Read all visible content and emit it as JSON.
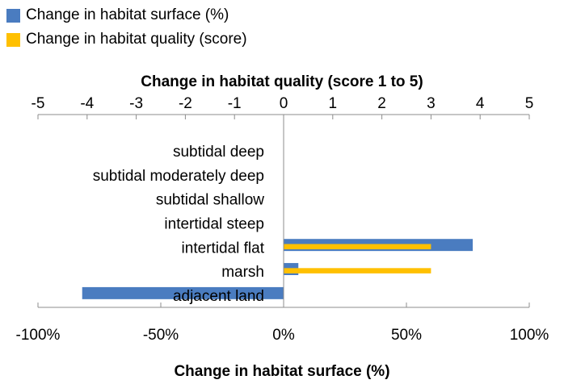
{
  "chart_data": {
    "type": "bar",
    "orientation": "horizontal",
    "categories": [
      "subtidal deep",
      "subtidal moderately deep",
      "subtidal shallow",
      "intertidal steep",
      "intertidal flat",
      "marsh",
      "adjacent land"
    ],
    "series": [
      {
        "name": "Change in habitat surface (%)",
        "axis": "bottom",
        "color": "#4a7cc0",
        "values": [
          0,
          0,
          0,
          0,
          77,
          6,
          -82
        ]
      },
      {
        "name": "Change in habitat quality (score)",
        "axis": "top",
        "color": "#ffc000",
        "values": [
          0,
          0,
          0,
          0,
          3,
          3,
          0
        ]
      }
    ],
    "top_axis": {
      "title": "Change in habitat quality (score 1 to 5)",
      "range": [
        -5,
        5
      ],
      "ticks": [
        "-5",
        "-4",
        "-3",
        "-2",
        "-1",
        "0",
        "1",
        "2",
        "3",
        "4",
        "5"
      ]
    },
    "bottom_axis": {
      "title": "Change in habitat surface (%)",
      "range": [
        -100,
        100
      ],
      "ticks": [
        "-100%",
        "-50%",
        "0%",
        "50%",
        "100%"
      ]
    },
    "legend_position": "top-left",
    "grid": false
  },
  "legend": {
    "items": [
      {
        "label": "Change in habitat surface (%)",
        "color": "#4a7cc0"
      },
      {
        "label": "Change in habitat quality (score)",
        "color": "#ffc000"
      }
    ]
  }
}
